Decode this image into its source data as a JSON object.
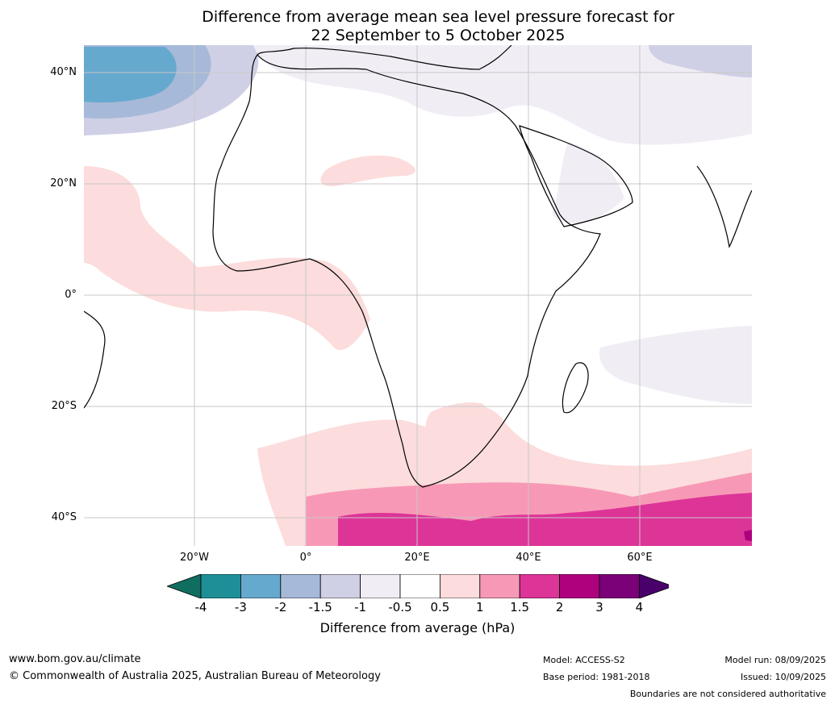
{
  "title": {
    "line1": "Difference from average mean sea level pressure forecast for",
    "line2": "22 September to 5 October 2025"
  },
  "map": {
    "lat_labels": [
      "40°N",
      "20°N",
      "0°",
      "20°S",
      "40°S"
    ],
    "lon_labels": [
      "20°W",
      "0°",
      "20°E",
      "40°E",
      "60°E"
    ]
  },
  "legend": {
    "title": "Difference from average (hPa)",
    "ticks": [
      "-4",
      "-3",
      "-2",
      "-1.5",
      "-1",
      "-0.5",
      "0.5",
      "1",
      "1.5",
      "2",
      "3",
      "4"
    ],
    "colors": [
      "#0f6e5f",
      "#1f8f97",
      "#66a9cf",
      "#a6b9d8",
      "#cfd0e5",
      "#f1edf5",
      "#ffffff",
      "#fcdcdc",
      "#f799b6",
      "#dd3497",
      "#ae017e",
      "#7a0177",
      "#49006a"
    ]
  },
  "footer": {
    "website": "www.bom.gov.au/climate",
    "copyright": "© Commonwealth of Australia 2025, Australian Bureau of Meteorology",
    "model": "Model: ACCESS-S2",
    "base_period": "Base period: 1981-2018",
    "model_run": "Model run: 08/09/2025",
    "issued": "Issued: 10/09/2025",
    "boundaries": "Boundaries are not considered authoritative"
  }
}
